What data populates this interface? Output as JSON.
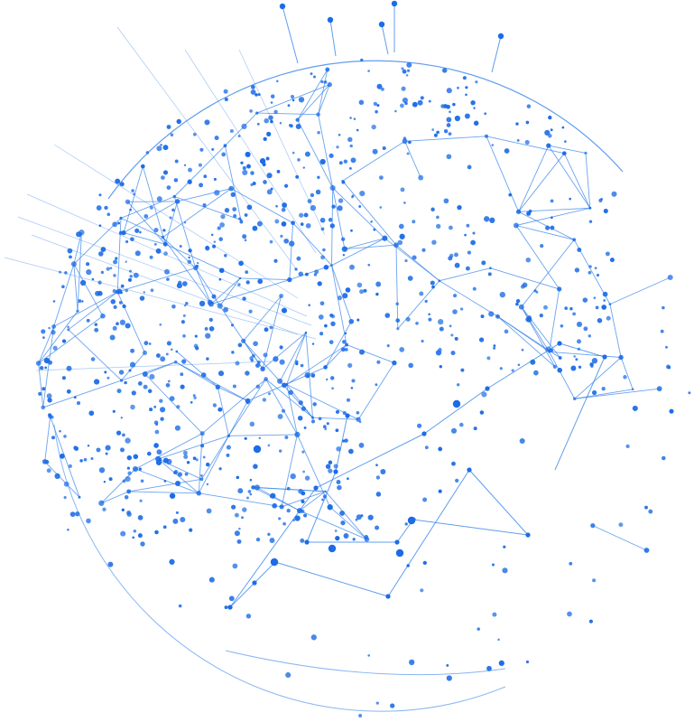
{
  "illustration": {
    "subject": "network-globe",
    "accent_color": "#1e6fe0",
    "line_color": "#3a86ea",
    "dot_color": "#1c6ce6",
    "background_color": "#ffffff"
  }
}
